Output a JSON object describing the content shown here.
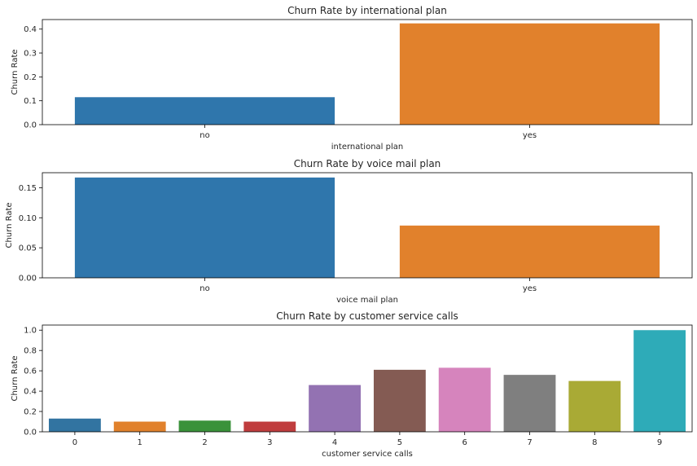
{
  "chart_data": [
    {
      "type": "bar",
      "title": "Churn Rate by international plan",
      "xlabel": "international plan",
      "ylabel": "Churn Rate",
      "categories": [
        "no",
        "yes"
      ],
      "values": [
        0.115,
        0.424
      ],
      "colors": [
        "#2f76ac",
        "#e1812c"
      ],
      "ylim": [
        0,
        0.44
      ],
      "yticks": [
        0.0,
        0.1,
        0.2,
        0.3,
        0.4
      ],
      "ytick_labels": [
        "0.0",
        "0.1",
        "0.2",
        "0.3",
        "0.4"
      ],
      "grid": false,
      "legend": "none"
    },
    {
      "type": "bar",
      "title": "Churn Rate by voice mail plan",
      "xlabel": "voice mail plan",
      "ylabel": "Churn Rate",
      "categories": [
        "no",
        "yes"
      ],
      "values": [
        0.167,
        0.087
      ],
      "colors": [
        "#2f76ac",
        "#e1812c"
      ],
      "ylim": [
        0,
        0.175
      ],
      "yticks": [
        0.0,
        0.05,
        0.1,
        0.15
      ],
      "ytick_labels": [
        "0.00",
        "0.05",
        "0.10",
        "0.15"
      ],
      "grid": false,
      "legend": "none"
    },
    {
      "type": "bar",
      "title": "Churn Rate by customer service calls",
      "xlabel": "customer service calls",
      "ylabel": "Churn Rate",
      "categories": [
        "0",
        "1",
        "2",
        "3",
        "4",
        "5",
        "6",
        "7",
        "8",
        "9"
      ],
      "values": [
        0.13,
        0.1,
        0.11,
        0.1,
        0.46,
        0.61,
        0.63,
        0.56,
        0.5,
        1.0
      ],
      "colors": [
        "#3274a1",
        "#e1812c",
        "#3a923a",
        "#c03d3e",
        "#9372b2",
        "#845b53",
        "#d684bd",
        "#7f7f7f",
        "#a9aa35",
        "#2eabb8"
      ],
      "ylim": [
        0,
        1.05
      ],
      "yticks": [
        0.0,
        0.2,
        0.4,
        0.6,
        0.8,
        1.0
      ],
      "ytick_labels": [
        "0.0",
        "0.2",
        "0.4",
        "0.6",
        "0.8",
        "1.0"
      ],
      "grid": false,
      "legend": "none"
    }
  ]
}
